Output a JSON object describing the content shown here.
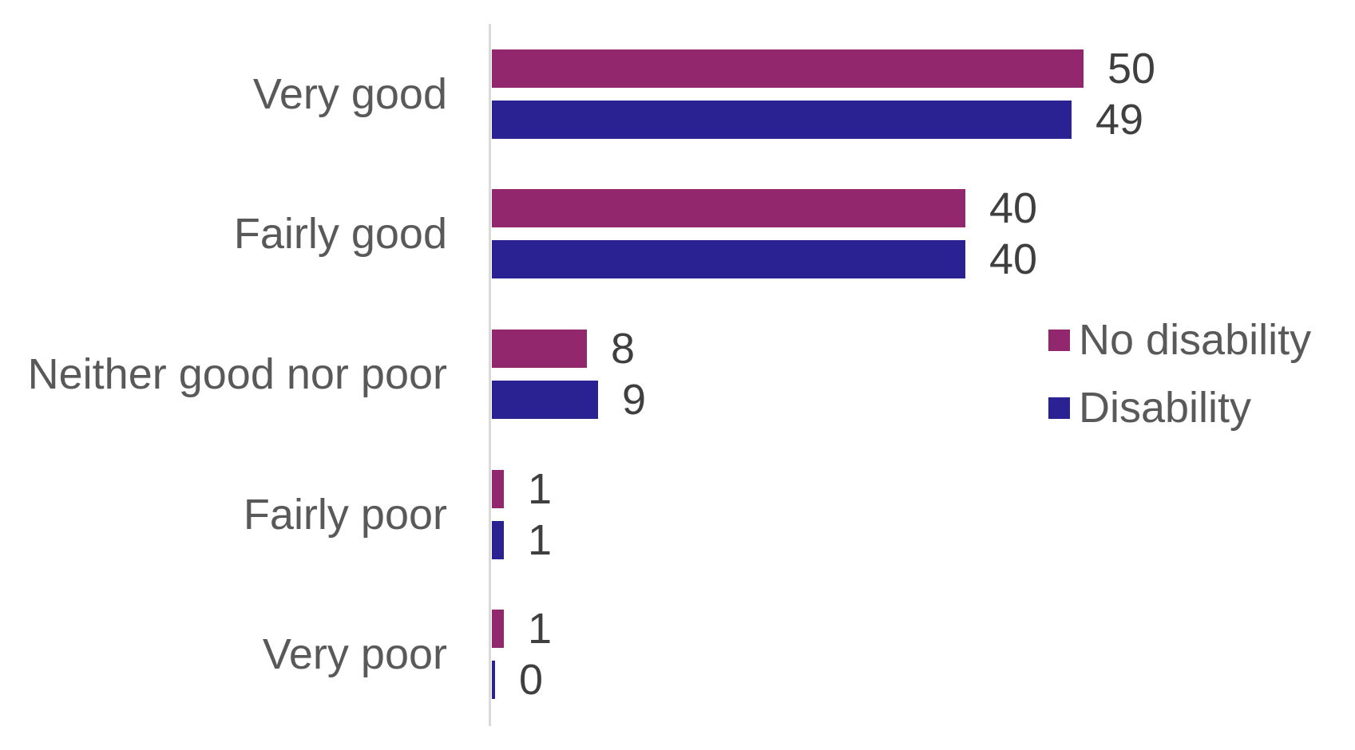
{
  "chart_data": {
    "type": "bar",
    "orientation": "horizontal",
    "title": "",
    "xlabel": "",
    "ylabel": "",
    "categories": [
      "Very good",
      "Fairly good",
      "Neither good nor poor",
      "Fairly poor",
      "Very poor"
    ],
    "series": [
      {
        "name": "No disability",
        "color": "#92276E",
        "values": [
          50,
          40,
          8,
          1,
          1
        ]
      },
      {
        "name": "Disability",
        "color": "#2A2192",
        "values": [
          49,
          40,
          9,
          1,
          0
        ]
      }
    ],
    "data_labels": {
      "No disability": [
        "50",
        "40",
        "8",
        "1",
        "1"
      ],
      "Disability": [
        "49",
        "40",
        "9",
        "1",
        "0"
      ]
    },
    "xlim": [
      0,
      50
    ],
    "grid": false,
    "x_axis_ticks_visible": false,
    "baseline_visible": true,
    "legend_position": "middle-right"
  },
  "colors": {
    "series_no_disability": "#92276E",
    "series_disability": "#2A2192",
    "axis_line": "#d9d9d9",
    "category_label_text": "#595959",
    "value_label_text": "#3f3f3f",
    "legend_text": "#595959",
    "background": "#ffffff"
  }
}
